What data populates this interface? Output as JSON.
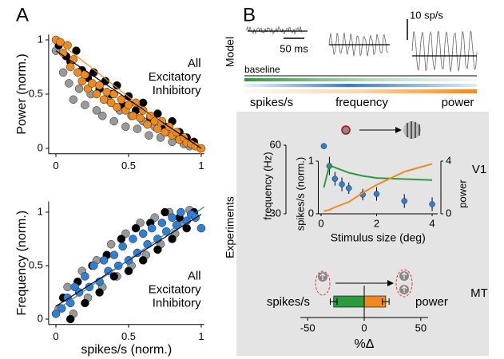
{
  "figure": {
    "panel_labels": [
      "A",
      "B"
    ],
    "model": {
      "label": "Model",
      "time_scale": "50 ms",
      "rate_scale": "10 sp/s",
      "baseline": "baseline",
      "gradients": [
        {
          "text": "spikes/s",
          "color": "#2e9a3f"
        },
        {
          "text": "frequency",
          "color": "#2f7fd6"
        },
        {
          "text": "power",
          "color": "#f08a1c"
        }
      ]
    },
    "experiments": {
      "label": "Experiments",
      "areas": [
        "V1",
        "MT"
      ]
    }
  },
  "chart_data": [
    {
      "type": "scatter",
      "ylabel": "Power (norm.)",
      "xlim": [
        -0.05,
        1.02
      ],
      "ylim": [
        -0.05,
        1.05
      ],
      "xticks": [
        0,
        0.5,
        1
      ],
      "yticks": [
        0,
        0.5,
        1
      ],
      "legend": "upper right",
      "series": [
        {
          "name": "All",
          "color": "#f08a1c",
          "x": [
            0.0,
            0.03,
            0.05,
            0.08,
            0.1,
            0.12,
            0.15,
            0.18,
            0.2,
            0.22,
            0.25,
            0.28,
            0.3,
            0.33,
            0.35,
            0.38,
            0.4,
            0.42,
            0.45,
            0.48,
            0.5,
            0.53,
            0.55,
            0.58,
            0.6,
            0.63,
            0.65,
            0.68,
            0.7,
            0.73,
            0.75,
            0.78,
            0.8,
            0.83,
            0.85,
            0.88,
            0.9,
            0.93,
            0.96,
            1.0
          ],
          "values": [
            1.0,
            0.98,
            0.88,
            0.95,
            0.75,
            0.82,
            0.7,
            0.62,
            0.68,
            0.55,
            0.6,
            0.5,
            0.58,
            0.45,
            0.52,
            0.42,
            0.5,
            0.38,
            0.45,
            0.35,
            0.4,
            0.3,
            0.42,
            0.28,
            0.35,
            0.22,
            0.3,
            0.25,
            0.18,
            0.25,
            0.15,
            0.2,
            0.12,
            0.15,
            0.08,
            0.1,
            0.05,
            0.04,
            0.02,
            0.0
          ]
        },
        {
          "name": "Excitatory",
          "color": "#000000",
          "x": [
            0.02,
            0.07,
            0.1,
            0.14,
            0.18,
            0.22,
            0.26,
            0.3,
            0.34,
            0.38,
            0.42,
            0.46,
            0.5,
            0.55,
            0.6,
            0.65,
            0.7,
            0.75,
            0.8,
            0.85,
            0.9,
            0.95
          ],
          "values": [
            0.95,
            0.85,
            0.8,
            0.9,
            0.72,
            0.65,
            0.7,
            0.55,
            0.62,
            0.5,
            0.58,
            0.4,
            0.48,
            0.35,
            0.42,
            0.28,
            0.32,
            0.2,
            0.25,
            0.15,
            0.1,
            0.06
          ]
        },
        {
          "name": "Inhibitory",
          "color": "#999999",
          "x": [
            0.0,
            0.05,
            0.09,
            0.12,
            0.16,
            0.2,
            0.24,
            0.28,
            0.32,
            0.36,
            0.4,
            0.44,
            0.48,
            0.52,
            0.56,
            0.6,
            0.64,
            0.68,
            0.72,
            0.76,
            0.8,
            0.84,
            0.88,
            0.92
          ],
          "values": [
            0.9,
            0.7,
            0.6,
            0.45,
            0.55,
            0.4,
            0.5,
            0.35,
            0.3,
            0.45,
            0.25,
            0.35,
            0.2,
            0.3,
            0.18,
            0.25,
            0.12,
            0.2,
            0.1,
            0.15,
            0.06,
            0.12,
            0.04,
            0.02
          ]
        }
      ],
      "fits": [
        {
          "color": "#000000",
          "x": [
            0,
            1
          ],
          "values": [
            0.9,
            0
          ]
        },
        {
          "color": "#f08a1c",
          "x": [
            0,
            1
          ],
          "values": [
            1,
            -0.05
          ]
        }
      ]
    },
    {
      "type": "scatter",
      "xlabel": "spikes/s (norm.)",
      "ylabel": "Frequency (norm.)",
      "xlim": [
        -0.05,
        1.02
      ],
      "ylim": [
        -0.05,
        1.1
      ],
      "xticks": [
        0,
        0.5,
        1
      ],
      "yticks": [
        0,
        0.5,
        1
      ],
      "legend": "lower right",
      "series": [
        {
          "name": "All",
          "color": "#2f7fd6",
          "x": [
            0.0,
            0.04,
            0.08,
            0.1,
            0.13,
            0.16,
            0.2,
            0.23,
            0.26,
            0.3,
            0.33,
            0.36,
            0.4,
            0.43,
            0.46,
            0.5,
            0.53,
            0.56,
            0.6,
            0.63,
            0.66,
            0.7,
            0.73,
            0.76,
            0.8,
            0.83,
            0.86,
            0.9,
            0.93,
            0.96,
            1.0
          ],
          "values": [
            0.05,
            0.1,
            0.2,
            0.15,
            0.3,
            0.25,
            0.4,
            0.3,
            0.5,
            0.35,
            0.55,
            0.45,
            0.6,
            0.5,
            0.68,
            0.55,
            0.75,
            0.62,
            0.8,
            0.7,
            0.85,
            0.75,
            0.9,
            0.82,
            0.95,
            0.88,
            1.0,
            0.92,
            0.98,
            0.95,
            0.85
          ]
        },
        {
          "name": "Excitatory",
          "color": "#000000",
          "x": [
            0.05,
            0.1,
            0.15,
            0.2,
            0.25,
            0.3,
            0.35,
            0.4,
            0.45,
            0.5,
            0.55,
            0.6,
            0.65,
            0.7,
            0.75,
            0.8,
            0.85,
            0.9,
            0.95
          ],
          "values": [
            0.2,
            0.0,
            0.35,
            0.15,
            0.5,
            0.25,
            0.6,
            0.4,
            0.75,
            0.45,
            0.85,
            0.55,
            0.9,
            0.65,
            1.0,
            0.75,
            0.95,
            0.85,
            1.0
          ]
        },
        {
          "name": "Inhibitory",
          "color": "#999999",
          "x": [
            0.02,
            0.08,
            0.12,
            0.18,
            0.22,
            0.28,
            0.32,
            0.38,
            0.42,
            0.48,
            0.52,
            0.58,
            0.62,
            0.68,
            0.72,
            0.78,
            0.82,
            0.88,
            0.92
          ],
          "values": [
            0.1,
            0.3,
            0.05,
            0.45,
            0.2,
            0.55,
            0.3,
            0.7,
            0.4,
            0.8,
            0.5,
            0.9,
            0.6,
            0.95,
            0.7,
            1.0,
            0.8,
            0.9,
            1.02
          ]
        }
      ],
      "fits": [
        {
          "color": "#000000",
          "x": [
            0,
            1
          ],
          "values": [
            0.12,
            0.98
          ]
        },
        {
          "color": "#2f7fd6",
          "x": [
            0,
            1.02
          ],
          "values": [
            0.08,
            1.05
          ]
        }
      ]
    },
    {
      "type": "line",
      "xlabel": "Stimulus size (deg)",
      "xlim": [
        -0.1,
        4.2
      ],
      "xticks": [
        0,
        2,
        4
      ],
      "ylabel": "frequency (Hz)",
      "ylim": [
        30,
        60
      ],
      "yticks": [
        30,
        60
      ],
      "y2label": "spikes/s (norm.)",
      "y2lim": [
        0,
        1
      ],
      "y2ticks": [
        0,
        1
      ],
      "y3label": "power",
      "y3lim": [
        0,
        4
      ],
      "y3ticks": [
        0,
        4
      ],
      "series": [
        {
          "axis": "y",
          "color": "#2f7fd6",
          "markers": true,
          "x": [
            0.1,
            0.3,
            0.5,
            0.75,
            1,
            1.5,
            2,
            3,
            4
          ],
          "values": [
            59.6,
            50.9,
            45.3,
            42.9,
            41.2,
            38.4,
            38.7,
            35.6,
            34.2
          ],
          "errors": [
            0.5,
            4,
            3,
            3,
            2.5,
            2.5,
            3,
            3,
            3
          ]
        },
        {
          "axis": "y2",
          "color": "#2e9a3f",
          "x": [
            0.1,
            0.3,
            0.5,
            1,
            1.5,
            2,
            3,
            4
          ],
          "values": [
            0.5,
            0.92,
            0.88,
            0.78,
            0.72,
            0.68,
            0.66,
            0.64
          ]
        },
        {
          "axis": "y3",
          "color": "#f08a1c",
          "x": [
            0.1,
            0.3,
            0.5,
            1,
            1.5,
            2,
            2.5,
            3,
            3.5,
            4
          ],
          "values": [
            0.2,
            0.3,
            0.5,
            0.9,
            1.6,
            2.2,
            2.7,
            3.2,
            3.5,
            3.8
          ]
        }
      ]
    },
    {
      "type": "bar",
      "orientation": "horizontal",
      "xlabel": "%Δ",
      "xlim": [
        -60,
        60
      ],
      "xticks": [
        -50,
        0,
        50
      ],
      "categories": [
        "spikes/s",
        "power"
      ],
      "values": [
        -27,
        19
      ],
      "errors": [
        3,
        3
      ],
      "colors": [
        "#2e9a3f",
        "#f08a1c"
      ]
    }
  ]
}
